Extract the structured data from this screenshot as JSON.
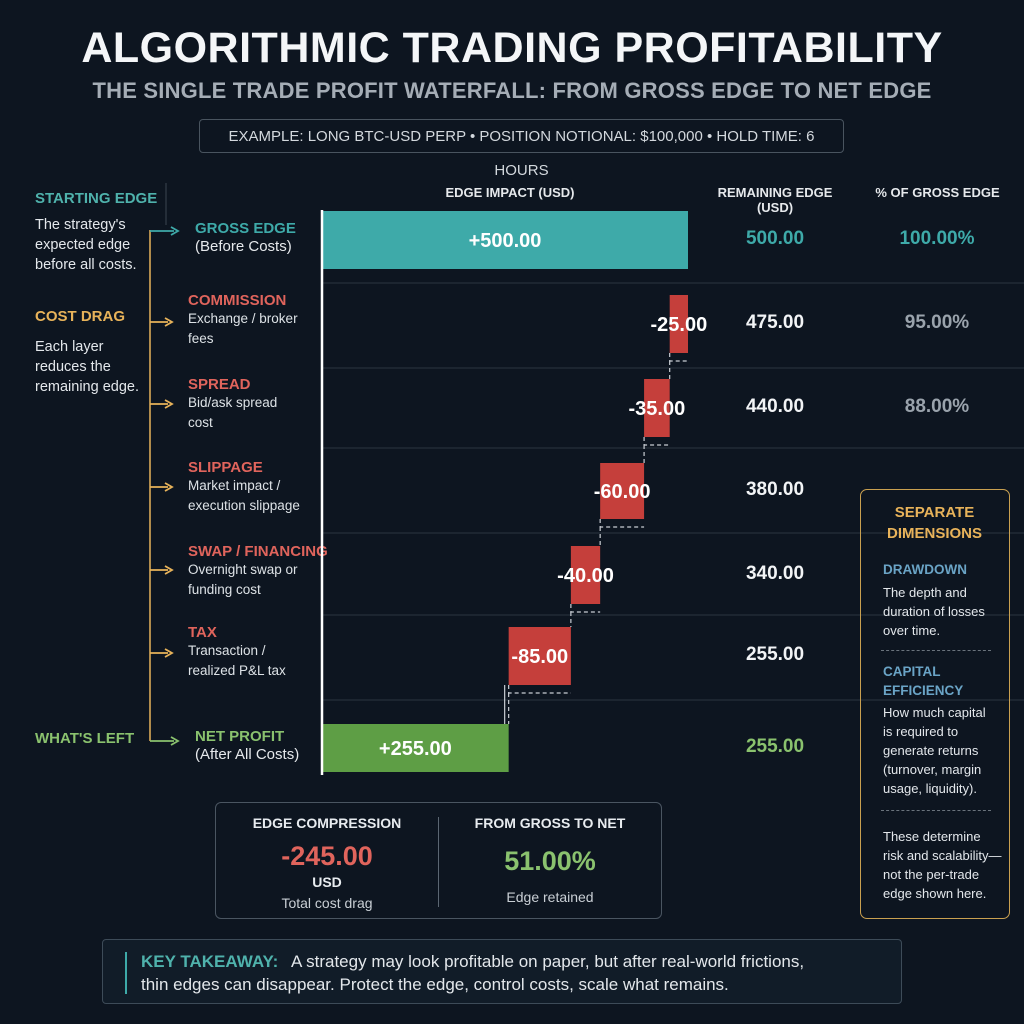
{
  "header": {
    "title": "ALGORITHMIC TRADING PROFITABILITY",
    "subtitle": "THE SINGLE TRADE PROFIT WATERFALL: FROM GROSS EDGE TO NET EDGE",
    "example": "EXAMPLE: LONG BTC-USD PERP • POSITION NOTIONAL: $100,000 • HOLD TIME: 6 HOURS"
  },
  "columns": {
    "impact": "EDGE IMPACT (USD)",
    "remaining": "REMAINING EDGE (USD)",
    "pct": "% OF GROSS EDGE"
  },
  "sidebar": {
    "starting_head": "STARTING EDGE",
    "starting_text": [
      "The strategy's",
      "expected edge",
      "before all costs."
    ],
    "cost_head": "COST DRAG",
    "cost_text": [
      "Each layer",
      "reduces the",
      "remaining edge."
    ],
    "left_head": "WHAT'S LEFT"
  },
  "chart_data": {
    "type": "waterfall",
    "unit": "USD",
    "rows": [
      {
        "name": "GROSS EDGE",
        "sub": [
          "(Before Costs)"
        ],
        "value": 500.0,
        "label": "+500.00",
        "remaining": "500.00",
        "pct": "100.00%",
        "kind": "start"
      },
      {
        "name": "COMMISSION",
        "sub": [
          "Exchange / broker",
          "fees"
        ],
        "value": -25.0,
        "label": "-25.00",
        "remaining": "475.00",
        "pct": "95.00%",
        "kind": "cost"
      },
      {
        "name": "SPREAD",
        "sub": [
          "Bid/ask spread",
          "cost"
        ],
        "value": -35.0,
        "label": "-35.00",
        "remaining": "440.00",
        "pct": "88.00%",
        "kind": "cost"
      },
      {
        "name": "SLIPPAGE",
        "sub": [
          "Market impact /",
          "execution slippage"
        ],
        "value": -60.0,
        "label": "-60.00",
        "remaining": "380.00",
        "pct": "",
        "kind": "cost"
      },
      {
        "name": "SWAP / FINANCING",
        "sub": [
          "Overnight swap or",
          "funding cost"
        ],
        "value": -40.0,
        "label": "-40.00",
        "remaining": "340.00",
        "pct": "",
        "kind": "cost"
      },
      {
        "name": "TAX",
        "sub": [
          "Transaction /",
          "realized P&L tax"
        ],
        "value": -85.0,
        "label": "-85.00",
        "remaining": "255.00",
        "pct": "",
        "kind": "cost"
      },
      {
        "name": "NET PROFIT",
        "sub": [
          "(After All Costs)"
        ],
        "value": 255.0,
        "label": "+255.00",
        "remaining": "255.00",
        "pct": "",
        "kind": "end"
      }
    ]
  },
  "summary": {
    "compression_head": "EDGE COMPRESSION",
    "compression_value": "-245.00",
    "compression_unit": "USD",
    "compression_caption": "Total cost drag",
    "retained_head": "FROM GROSS TO NET",
    "retained_value": "51.00%",
    "retained_caption": "Edge retained"
  },
  "separate": {
    "head": [
      "SEPARATE",
      "DIMENSIONS"
    ],
    "drawdown_head": "DRAWDOWN",
    "drawdown_text": [
      "The depth and",
      "duration of losses",
      "over time."
    ],
    "capital_head": [
      "CAPITAL",
      "EFFICIENCY"
    ],
    "capital_text": [
      "How much capital",
      "is required to",
      "generate returns",
      "(turnover, margin",
      "usage, liquidity)."
    ],
    "footer_text": [
      "These determine",
      "risk and scalability—",
      "not the per-trade",
      "edge shown here."
    ]
  },
  "takeaway": {
    "label": "KEY TAKEAWAY:",
    "line1": "A strategy may look profitable on paper, but after real-world frictions,",
    "line2": "thin edges can disappear. Protect the edge, control costs, scale what remains."
  },
  "colors": {
    "teal": "#3eaaa9",
    "red": "#c53f3b",
    "green": "#5e9e45",
    "salmon": "#e0645c",
    "gold": "#e8b35a",
    "lightgreen": "#8ac26e",
    "blue": "#6aa4c6"
  }
}
